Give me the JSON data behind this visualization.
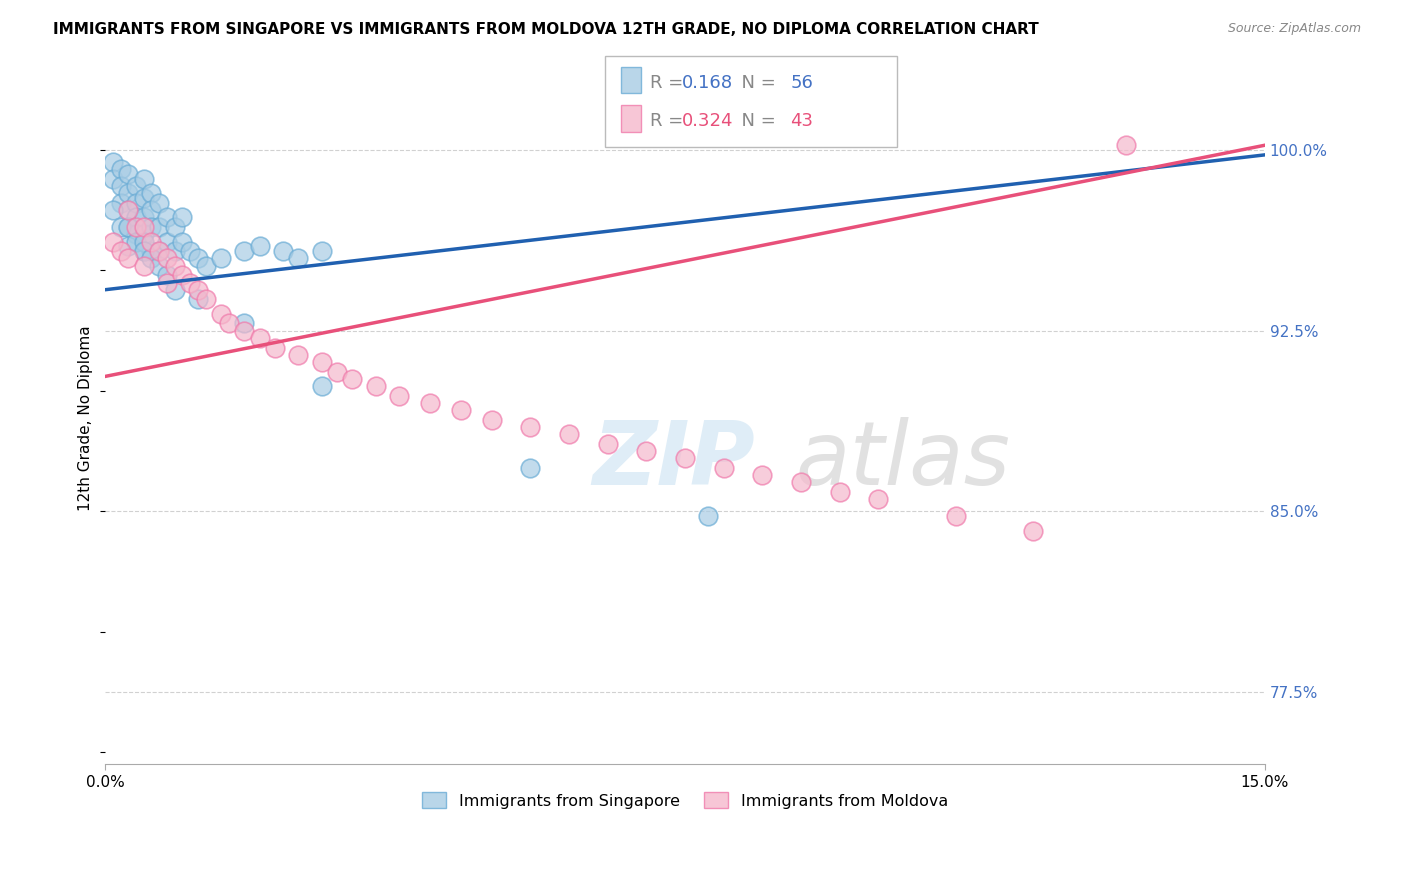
{
  "title": "IMMIGRANTS FROM SINGAPORE VS IMMIGRANTS FROM MOLDOVA 12TH GRADE, NO DIPLOMA CORRELATION CHART",
  "source": "Source: ZipAtlas.com",
  "legend_label_blue": "Immigrants from Singapore",
  "legend_label_pink": "Immigrants from Moldova",
  "r_blue": "0.168",
  "n_blue": "56",
  "r_pink": "0.324",
  "n_pink": "43",
  "color_blue_fill": "#a8cce4",
  "color_blue_edge": "#6aacd5",
  "color_pink_fill": "#f5b8cc",
  "color_pink_edge": "#f07aab",
  "color_blue_line": "#2060b0",
  "color_pink_line": "#e8507a",
  "color_blue_text": "#4472c4",
  "color_pink_text": "#e8507a",
  "xlim": [
    0.0,
    0.15
  ],
  "ylim": [
    0.745,
    1.032
  ],
  "ytick_vals": [
    0.775,
    0.85,
    0.925,
    1.0
  ],
  "ytick_labels": [
    "77.5%",
    "85.0%",
    "92.5%",
    "100.0%"
  ],
  "xtick_vals": [
    0.0,
    0.15
  ],
  "xtick_labels": [
    "0.0%",
    "15.0%"
  ],
  "ylabel_label": "12th Grade, No Diploma",
  "sg_line_x0": 0.0,
  "sg_line_y0": 0.942,
  "sg_line_x1": 0.15,
  "sg_line_y1": 0.998,
  "md_line_x0": 0.0,
  "md_line_y0": 0.906,
  "md_line_x1": 0.15,
  "md_line_y1": 1.002,
  "sg_x": [
    0.001,
    0.001,
    0.002,
    0.002,
    0.002,
    0.003,
    0.003,
    0.003,
    0.003,
    0.004,
    0.004,
    0.004,
    0.004,
    0.005,
    0.005,
    0.005,
    0.005,
    0.005,
    0.006,
    0.006,
    0.006,
    0.006,
    0.007,
    0.007,
    0.007,
    0.008,
    0.008,
    0.009,
    0.009,
    0.01,
    0.01,
    0.011,
    0.012,
    0.013,
    0.015,
    0.018,
    0.02,
    0.023,
    0.025,
    0.028,
    0.001,
    0.002,
    0.003,
    0.003,
    0.004,
    0.005,
    0.005,
    0.006,
    0.007,
    0.008,
    0.009,
    0.012,
    0.018,
    0.028,
    0.055,
    0.078
  ],
  "sg_y": [
    0.995,
    0.988,
    0.992,
    0.985,
    0.978,
    0.99,
    0.982,
    0.975,
    0.968,
    0.985,
    0.978,
    0.972,
    0.965,
    0.988,
    0.98,
    0.972,
    0.965,
    0.958,
    0.982,
    0.975,
    0.968,
    0.958,
    0.978,
    0.968,
    0.958,
    0.972,
    0.962,
    0.968,
    0.958,
    0.972,
    0.962,
    0.958,
    0.955,
    0.952,
    0.955,
    0.958,
    0.96,
    0.958,
    0.955,
    0.958,
    0.975,
    0.968,
    0.968,
    0.96,
    0.962,
    0.962,
    0.958,
    0.955,
    0.952,
    0.948,
    0.942,
    0.938,
    0.928,
    0.902,
    0.868,
    0.848
  ],
  "md_x": [
    0.001,
    0.002,
    0.003,
    0.003,
    0.004,
    0.005,
    0.005,
    0.006,
    0.007,
    0.008,
    0.008,
    0.009,
    0.01,
    0.011,
    0.012,
    0.013,
    0.015,
    0.016,
    0.018,
    0.02,
    0.022,
    0.025,
    0.028,
    0.03,
    0.032,
    0.035,
    0.038,
    0.042,
    0.046,
    0.05,
    0.055,
    0.06,
    0.065,
    0.07,
    0.075,
    0.08,
    0.085,
    0.09,
    0.095,
    0.1,
    0.11,
    0.12,
    0.132
  ],
  "md_y": [
    0.962,
    0.958,
    0.975,
    0.955,
    0.968,
    0.968,
    0.952,
    0.962,
    0.958,
    0.955,
    0.945,
    0.952,
    0.948,
    0.945,
    0.942,
    0.938,
    0.932,
    0.928,
    0.925,
    0.922,
    0.918,
    0.915,
    0.912,
    0.908,
    0.905,
    0.902,
    0.898,
    0.895,
    0.892,
    0.888,
    0.885,
    0.882,
    0.878,
    0.875,
    0.872,
    0.868,
    0.865,
    0.862,
    0.858,
    0.855,
    0.848,
    0.842,
    1.002
  ]
}
